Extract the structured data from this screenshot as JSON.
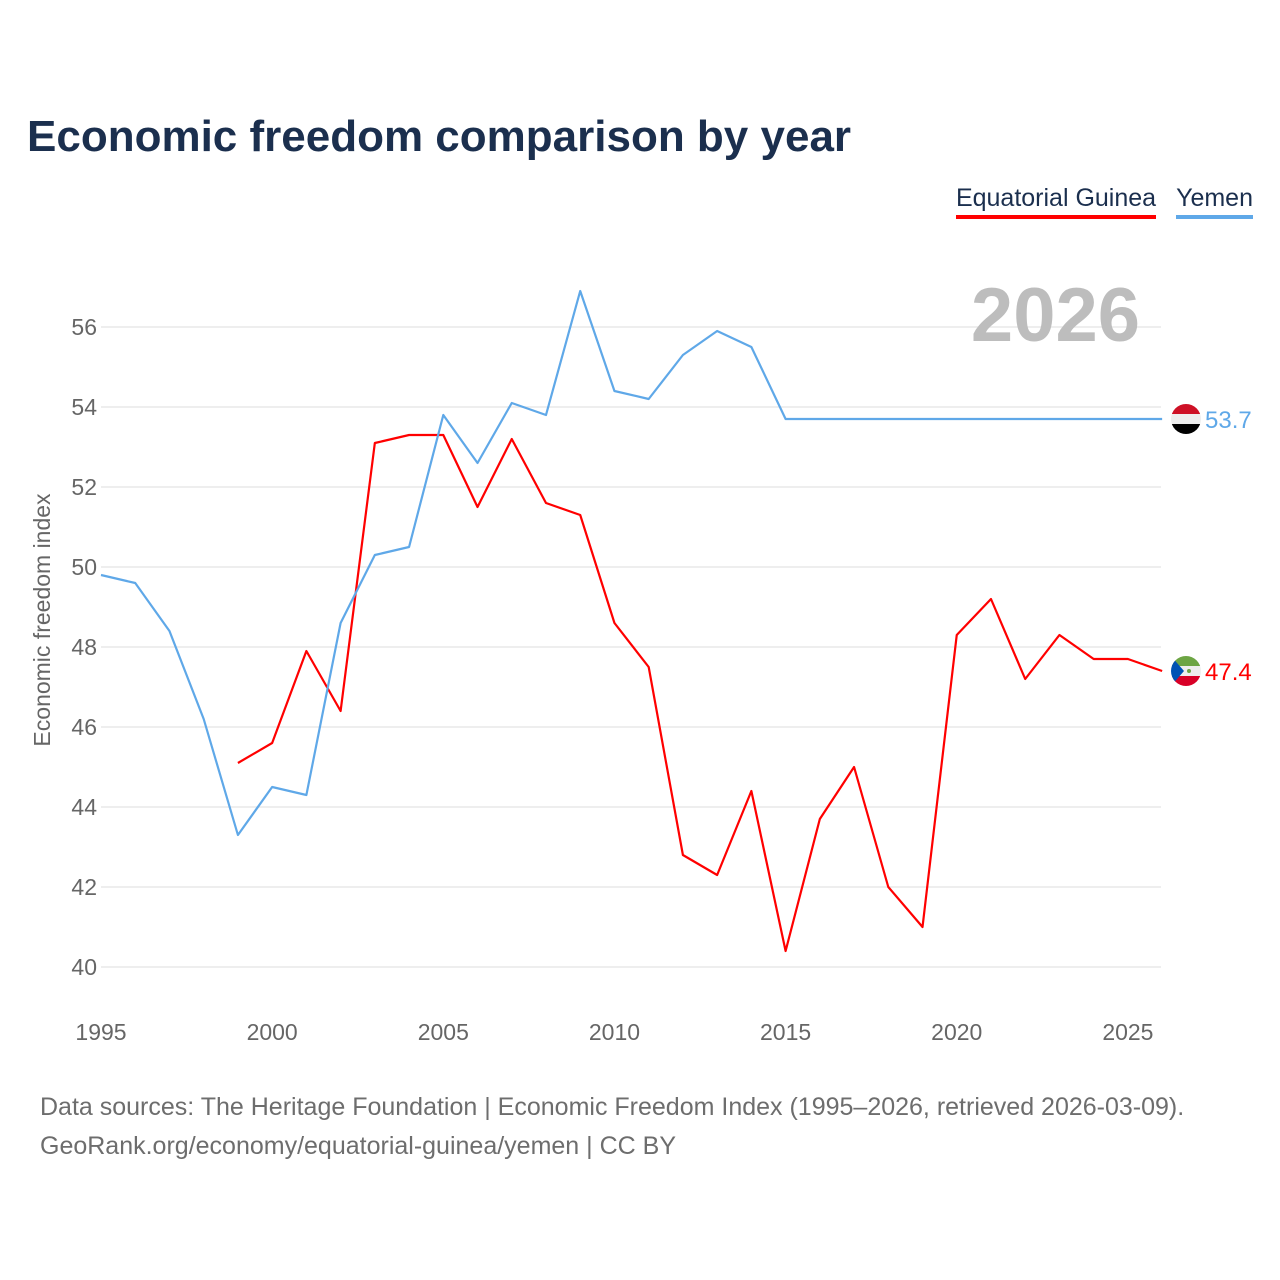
{
  "chart_data": {
    "type": "line",
    "title": "Economic freedom comparison by year",
    "xlabel": "",
    "ylabel": "Economic freedom index",
    "xlim": [
      1995,
      2026
    ],
    "ylim": [
      39,
      57.5
    ],
    "x_ticks": [
      "1995",
      "2000",
      "2005",
      "2010",
      "2015",
      "2020",
      "2025"
    ],
    "y_ticks": [
      "40",
      "42",
      "44",
      "46",
      "48",
      "50",
      "52",
      "54",
      "56"
    ],
    "grid": true,
    "legend_position": "top-right",
    "year_label": "2026",
    "series": [
      {
        "name": "Equatorial Guinea",
        "color": "#ff0000",
        "end_label": "47.4",
        "x": [
          1999,
          2000,
          2001,
          2002,
          2003,
          2004,
          2005,
          2006,
          2007,
          2008,
          2009,
          2010,
          2011,
          2012,
          2013,
          2014,
          2015,
          2016,
          2017,
          2018,
          2019,
          2020,
          2021,
          2022,
          2023,
          2024,
          2025,
          2026
        ],
        "values": [
          45.1,
          45.6,
          47.9,
          46.4,
          53.1,
          53.3,
          53.3,
          51.5,
          53.2,
          51.6,
          51.3,
          48.6,
          47.5,
          42.8,
          42.3,
          44.4,
          40.4,
          43.7,
          45.0,
          42.0,
          41.0,
          48.3,
          49.2,
          47.2,
          48.3,
          47.7,
          47.7,
          47.4
        ]
      },
      {
        "name": "Yemen",
        "color": "#5fa8e8",
        "end_label": "53.7",
        "x": [
          1995,
          1996,
          1997,
          1998,
          1999,
          2000,
          2001,
          2002,
          2003,
          2004,
          2005,
          2006,
          2007,
          2008,
          2009,
          2010,
          2011,
          2012,
          2013,
          2014,
          2015,
          2016,
          2017,
          2018,
          2019,
          2020,
          2021,
          2022,
          2023,
          2024,
          2025,
          2026
        ],
        "values": [
          49.8,
          49.6,
          48.4,
          46.2,
          43.3,
          44.5,
          44.3,
          48.6,
          50.3,
          50.5,
          53.8,
          52.6,
          54.1,
          53.8,
          56.9,
          54.4,
          54.2,
          55.3,
          55.9,
          55.5,
          53.7,
          53.7,
          53.7,
          53.7,
          53.7,
          53.7,
          53.7,
          53.7,
          53.7,
          53.7,
          53.7,
          53.7
        ]
      }
    ]
  },
  "footer": {
    "line1": "Data sources: The Heritage Foundation | Economic Freedom Index (1995–2026, retrieved 2026-03-09).",
    "line2": "GeoRank.org/economy/equatorial-guinea/yemen | CC BY"
  }
}
